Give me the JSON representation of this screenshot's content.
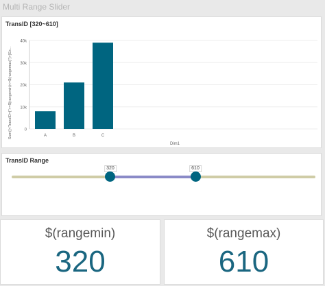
{
  "app": {
    "title": "Multi Range Slider"
  },
  "chart_card": {
    "title": "TransID [320~610]",
    "ylabel": "Sum({<TransID={\">=$(rangemin)<=$(rangemax)\"}>}Ex...",
    "xlabel": "Dim1"
  },
  "chart_data": {
    "type": "bar",
    "categories": [
      "A",
      "B",
      "C"
    ],
    "values": [
      8000,
      21000,
      39000
    ],
    "yticks": [
      "0",
      "10k",
      "20k",
      "30k",
      "40k"
    ],
    "ylim": [
      0,
      40000
    ],
    "color": "#006580",
    "grid": true
  },
  "range_card": {
    "title": "TransID Range",
    "min_label": "320",
    "max_label": "610",
    "min_fraction": 0.325,
    "max_fraction": 0.605,
    "track_color": "#cfcca6",
    "fill_color": "#8a8ac7",
    "handle_color": "#006580"
  },
  "kpis": {
    "min": {
      "label": "$(rangemin)",
      "value": "320"
    },
    "max": {
      "label": "$(rangemax)",
      "value": "610"
    }
  }
}
